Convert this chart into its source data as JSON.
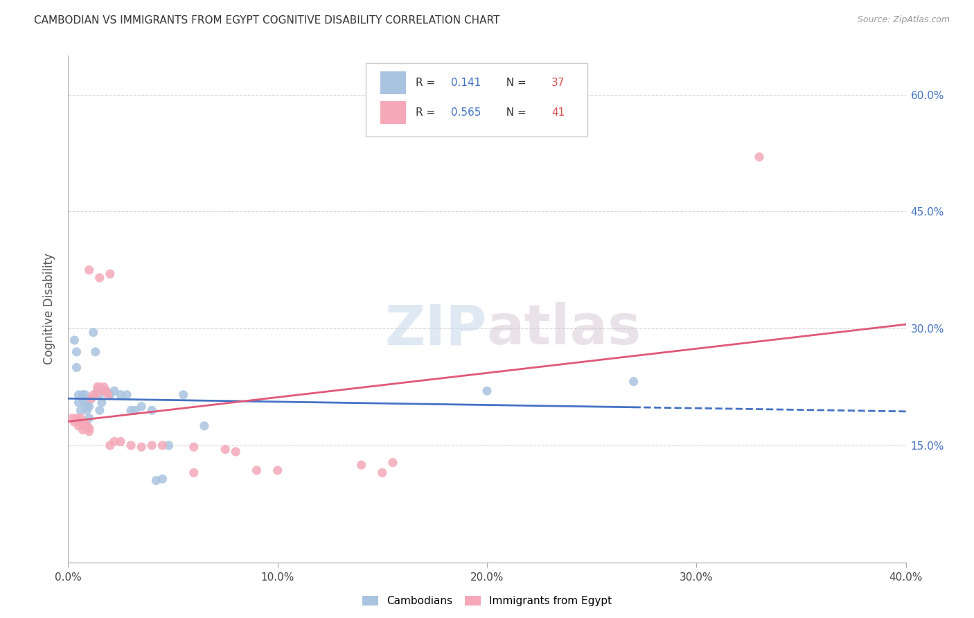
{
  "title": "CAMBODIAN VS IMMIGRANTS FROM EGYPT COGNITIVE DISABILITY CORRELATION CHART",
  "source": "Source: ZipAtlas.com",
  "ylabel": "Cognitive Disability",
  "watermark": "ZIPatlas",
  "xlim": [
    0.0,
    0.4
  ],
  "ylim": [
    0.0,
    0.65
  ],
  "xtick_labels": [
    "0.0%",
    "10.0%",
    "20.0%",
    "30.0%",
    "40.0%"
  ],
  "xtick_vals": [
    0.0,
    0.1,
    0.2,
    0.3,
    0.4
  ],
  "ytick_labels": [
    "15.0%",
    "30.0%",
    "45.0%",
    "60.0%"
  ],
  "ytick_vals": [
    0.15,
    0.3,
    0.45,
    0.6
  ],
  "cambodian_color": "#a8c4e0",
  "egypt_color": "#f4a8b8",
  "cambodian_line_color": "#4472c4",
  "egypt_line_color": "#e05878",
  "cambodian_R": 0.141,
  "cambodian_N": 37,
  "egypt_R": 0.565,
  "egypt_N": 41,
  "legend_R_color": "#4472c4",
  "legend_N_color": "#e05050",
  "cambodian_scatter": [
    [
      0.003,
      0.285
    ],
    [
      0.004,
      0.27
    ],
    [
      0.004,
      0.25
    ],
    [
      0.005,
      0.215
    ],
    [
      0.005,
      0.205
    ],
    [
      0.006,
      0.195
    ],
    [
      0.007,
      0.215
    ],
    [
      0.007,
      0.21
    ],
    [
      0.008,
      0.215
    ],
    [
      0.008,
      0.205
    ],
    [
      0.009,
      0.2
    ],
    [
      0.009,
      0.195
    ],
    [
      0.01,
      0.2
    ],
    [
      0.01,
      0.185
    ],
    [
      0.011,
      0.21
    ],
    [
      0.012,
      0.295
    ],
    [
      0.013,
      0.27
    ],
    [
      0.014,
      0.22
    ],
    [
      0.015,
      0.215
    ],
    [
      0.015,
      0.195
    ],
    [
      0.016,
      0.205
    ],
    [
      0.018,
      0.22
    ],
    [
      0.02,
      0.215
    ],
    [
      0.022,
      0.22
    ],
    [
      0.025,
      0.215
    ],
    [
      0.028,
      0.215
    ],
    [
      0.03,
      0.195
    ],
    [
      0.032,
      0.195
    ],
    [
      0.035,
      0.2
    ],
    [
      0.04,
      0.195
    ],
    [
      0.042,
      0.105
    ],
    [
      0.045,
      0.107
    ],
    [
      0.048,
      0.15
    ],
    [
      0.055,
      0.215
    ],
    [
      0.065,
      0.175
    ],
    [
      0.2,
      0.22
    ],
    [
      0.27,
      0.232
    ]
  ],
  "egypt_scatter": [
    [
      0.002,
      0.185
    ],
    [
      0.003,
      0.18
    ],
    [
      0.004,
      0.185
    ],
    [
      0.005,
      0.18
    ],
    [
      0.005,
      0.175
    ],
    [
      0.006,
      0.185
    ],
    [
      0.007,
      0.175
    ],
    [
      0.007,
      0.17
    ],
    [
      0.008,
      0.178
    ],
    [
      0.009,
      0.175
    ],
    [
      0.01,
      0.172
    ],
    [
      0.01,
      0.168
    ],
    [
      0.011,
      0.21
    ],
    [
      0.012,
      0.215
    ],
    [
      0.013,
      0.215
    ],
    [
      0.014,
      0.225
    ],
    [
      0.015,
      0.225
    ],
    [
      0.016,
      0.22
    ],
    [
      0.017,
      0.225
    ],
    [
      0.018,
      0.22
    ],
    [
      0.019,
      0.215
    ],
    [
      0.02,
      0.15
    ],
    [
      0.022,
      0.155
    ],
    [
      0.025,
      0.155
    ],
    [
      0.03,
      0.15
    ],
    [
      0.035,
      0.148
    ],
    [
      0.04,
      0.15
    ],
    [
      0.045,
      0.15
    ],
    [
      0.06,
      0.148
    ],
    [
      0.075,
      0.145
    ],
    [
      0.08,
      0.142
    ],
    [
      0.09,
      0.118
    ],
    [
      0.1,
      0.118
    ],
    [
      0.14,
      0.125
    ],
    [
      0.15,
      0.115
    ],
    [
      0.01,
      0.375
    ],
    [
      0.015,
      0.365
    ],
    [
      0.02,
      0.37
    ],
    [
      0.33,
      0.52
    ],
    [
      0.155,
      0.128
    ],
    [
      0.06,
      0.115
    ]
  ],
  "background_color": "#ffffff",
  "grid_color": "#cccccc"
}
